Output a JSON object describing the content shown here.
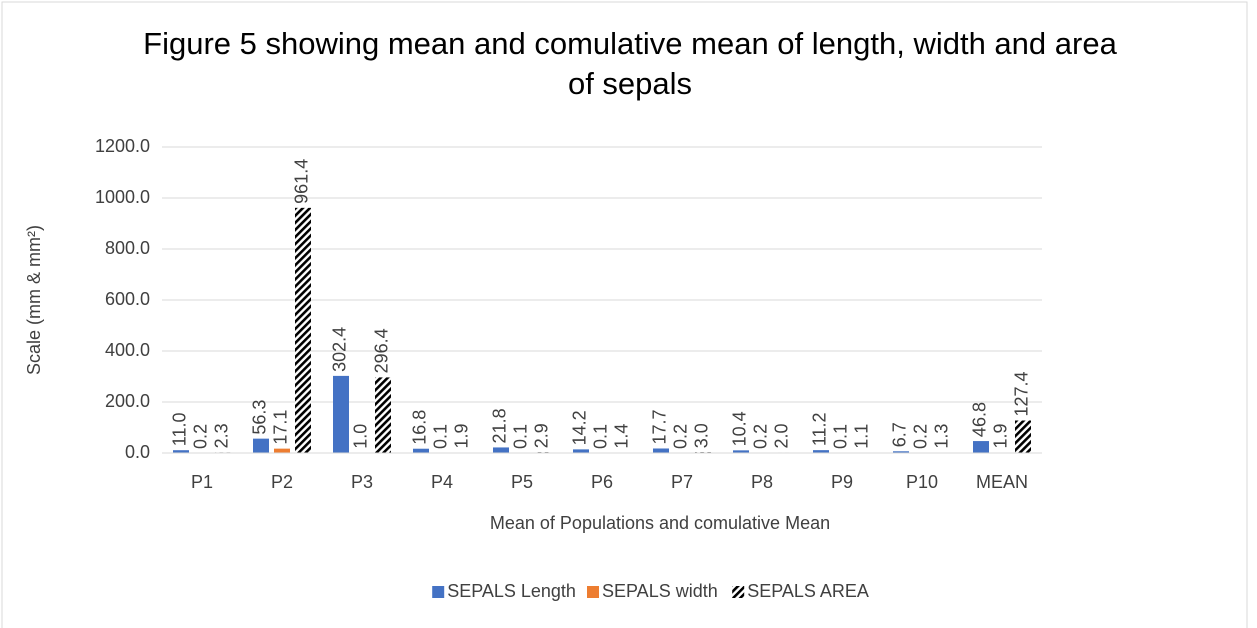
{
  "chart_data": {
    "type": "bar",
    "title": "Figure 5 showing mean and comulative mean of length, width and area of sepals",
    "x_label": "Mean of Populations and comulative Mean",
    "y_label": "Scale (mm & mm²)",
    "categories": [
      "P1",
      "P2",
      "P3",
      "P4",
      "P5",
      "P6",
      "P7",
      "P8",
      "P9",
      "P10",
      "MEAN"
    ],
    "series": [
      {
        "name": "SEPALS Length",
        "color": "#4472c4",
        "values": [
          11.0,
          56.3,
          302.4,
          16.8,
          21.8,
          14.2,
          17.7,
          10.4,
          11.2,
          6.7,
          46.8
        ],
        "value_labels": [
          "11.0",
          "56.3",
          "302.4",
          "16.8",
          "21.8",
          "14.2",
          "17.7",
          "10.4",
          "11.2",
          "6.7",
          "46.8"
        ]
      },
      {
        "name": "SEPALS width",
        "color": "#ed7d31",
        "values": [
          0.2,
          17.1,
          1.0,
          0.1,
          0.1,
          0.1,
          0.2,
          0.2,
          0.1,
          0.2,
          1.9
        ],
        "value_labels": [
          "0.2",
          "17.1",
          "1.0",
          "0.1",
          "0.1",
          "0.1",
          "0.2",
          "0.2",
          "0.1",
          "0.2",
          "1.9"
        ]
      },
      {
        "name": "SEPALS AREA",
        "color": "#000000",
        "pattern": "hatch",
        "values": [
          2.3,
          961.4,
          296.4,
          1.9,
          2.9,
          1.4,
          3.0,
          2.0,
          1.1,
          1.3,
          127.4
        ],
        "value_labels": [
          "2.3",
          "961.4",
          "296.4",
          "1.9",
          "2.9",
          "1.4",
          "3.0",
          "2.0",
          "1.1",
          "1.3",
          "127.4"
        ]
      }
    ],
    "ylim": [
      0,
      1200
    ],
    "yticks": [
      {
        "value": 0,
        "label": "0.0"
      },
      {
        "value": 200,
        "label": "200.0"
      },
      {
        "value": 400,
        "label": "400.0"
      },
      {
        "value": 600,
        "label": "600.0"
      },
      {
        "value": 800,
        "label": "800.0"
      },
      {
        "value": 1000,
        "label": "1000.0"
      },
      {
        "value": 1200,
        "label": "1200.0"
      }
    ],
    "grid": true,
    "legend": "bottom"
  }
}
